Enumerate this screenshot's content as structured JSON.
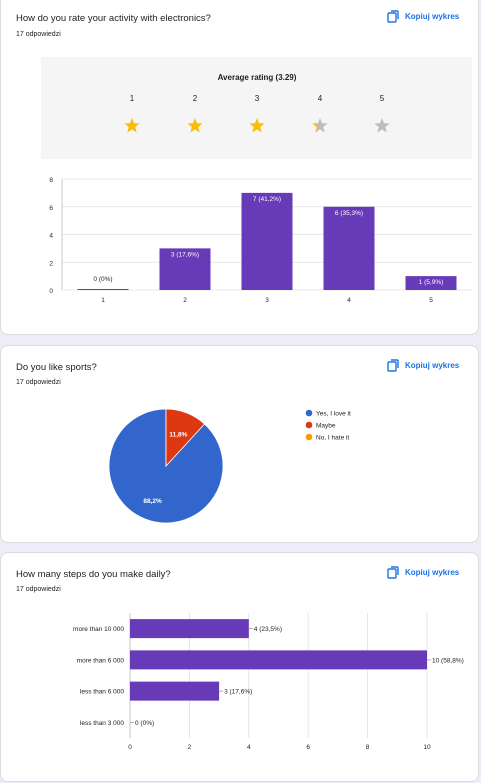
{
  "copy_label": "Kopiuj wykres",
  "q1": {
    "title": "How do you rate your activity with electronics?",
    "count": "17 odpowiedzi",
    "average_label": "Average rating (3.29)",
    "ratings": [
      "1",
      "2",
      "3",
      "4",
      "5"
    ],
    "star_fill": [
      1,
      1,
      1,
      0.3,
      0
    ]
  },
  "q2": {
    "title": "Do you like sports?",
    "count": "17 odpowiedzi"
  },
  "q3": {
    "title": "How many steps do you make daily?",
    "count": "17 odpowiedzi"
  },
  "colors": {
    "purple": "#673ab7",
    "blue": "#3366cc",
    "red": "#dc3912",
    "orange": "#ff9900",
    "star": "#fbbc04",
    "star_empty": "#bdbdbd",
    "accent": "#1a73e8"
  },
  "chart_data": [
    {
      "type": "bar",
      "categories": [
        "1",
        "2",
        "3",
        "4",
        "5"
      ],
      "values": [
        0,
        3,
        7,
        6,
        1
      ],
      "labels": [
        "0 (0%)",
        "3 (17,6%)",
        "7 (41,2%)",
        "6 (35,3%)",
        "1 (5,9%)"
      ],
      "yticks": [
        "0",
        "2",
        "4",
        "6",
        "8"
      ],
      "ylim": [
        0,
        8
      ]
    },
    {
      "type": "pie",
      "categories": [
        "Yes, I love it",
        "Maybe",
        "No, I hate it"
      ],
      "values": [
        88.2,
        11.8,
        0
      ],
      "labels": [
        "88,2%",
        "11,8%",
        ""
      ],
      "legend": "right"
    },
    {
      "type": "bar",
      "orientation": "horizontal",
      "categories": [
        "more than 10 000",
        "more than 6 000",
        "less than 6 000",
        "less than 3 000"
      ],
      "values": [
        4,
        10,
        3,
        0
      ],
      "labels": [
        "4 (23,5%)",
        "10 (58,8%)",
        "3 (17,6%)",
        "0 (0%)"
      ],
      "xticks": [
        "0",
        "2",
        "4",
        "6",
        "8",
        "10"
      ],
      "xlim": [
        0,
        10
      ]
    }
  ]
}
